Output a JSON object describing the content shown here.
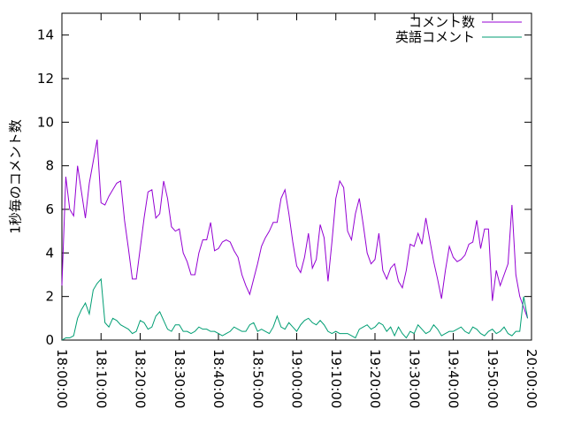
{
  "chart_data": {
    "type": "line",
    "ylabel": "1秒毎のコメント数",
    "legend": "top-right",
    "xlim": [
      "18:00:00",
      "20:00:00"
    ],
    "xticks": [
      "18:00:00",
      "18:10:00",
      "18:20:00",
      "18:30:00",
      "18:40:00",
      "18:50:00",
      "19:00:00",
      "19:10:00",
      "19:20:00",
      "19:30:00",
      "19:40:00",
      "19:50:00",
      "20:00:00"
    ],
    "ylim": [
      0,
      15
    ],
    "yticks": [
      0,
      2,
      4,
      6,
      8,
      10,
      12,
      14
    ],
    "x": [
      "18:00:00",
      "18:01:00",
      "18:02:00",
      "18:03:00",
      "18:04:00",
      "18:05:00",
      "18:06:00",
      "18:07:00",
      "18:08:00",
      "18:09:00",
      "18:10:00",
      "18:11:00",
      "18:12:00",
      "18:13:00",
      "18:14:00",
      "18:15:00",
      "18:16:00",
      "18:17:00",
      "18:18:00",
      "18:19:00",
      "18:20:00",
      "18:21:00",
      "18:22:00",
      "18:23:00",
      "18:24:00",
      "18:25:00",
      "18:26:00",
      "18:27:00",
      "18:28:00",
      "18:29:00",
      "18:30:00",
      "18:31:00",
      "18:32:00",
      "18:33:00",
      "18:34:00",
      "18:35:00",
      "18:36:00",
      "18:37:00",
      "18:38:00",
      "18:39:00",
      "18:40:00",
      "18:41:00",
      "18:42:00",
      "18:43:00",
      "18:44:00",
      "18:45:00",
      "18:46:00",
      "18:47:00",
      "18:48:00",
      "18:49:00",
      "18:50:00",
      "18:51:00",
      "18:52:00",
      "18:53:00",
      "18:54:00",
      "18:55:00",
      "18:56:00",
      "18:57:00",
      "18:58:00",
      "18:59:00",
      "19:00:00",
      "19:01:00",
      "19:02:00",
      "19:03:00",
      "19:04:00",
      "19:05:00",
      "19:06:00",
      "19:07:00",
      "19:08:00",
      "19:09:00",
      "19:10:00",
      "19:11:00",
      "19:12:00",
      "19:13:00",
      "19:14:00",
      "19:15:00",
      "19:16:00",
      "19:17:00",
      "19:18:00",
      "19:19:00",
      "19:20:00",
      "19:21:00",
      "19:22:00",
      "19:23:00",
      "19:24:00",
      "19:25:00",
      "19:26:00",
      "19:27:00",
      "19:28:00",
      "19:29:00",
      "19:30:00",
      "19:31:00",
      "19:32:00",
      "19:33:00",
      "19:34:00",
      "19:35:00",
      "19:36:00",
      "19:37:00",
      "19:38:00",
      "19:39:00",
      "19:40:00",
      "19:41:00",
      "19:42:00",
      "19:43:00",
      "19:44:00",
      "19:45:00",
      "19:46:00",
      "19:47:00",
      "19:48:00",
      "19:49:00",
      "19:50:00",
      "19:51:00",
      "19:52:00",
      "19:53:00",
      "19:54:00",
      "19:55:00",
      "19:56:00",
      "19:57:00",
      "19:58:00",
      "19:59:00"
    ],
    "series": [
      {
        "name": "コメント数",
        "color": "#9400d3",
        "values": [
          2.5,
          7.5,
          6.0,
          5.7,
          8.0,
          6.8,
          5.6,
          7.2,
          8.2,
          9.2,
          6.3,
          6.2,
          6.6,
          6.9,
          7.2,
          7.3,
          5.5,
          4.2,
          2.8,
          2.8,
          4.2,
          5.6,
          6.8,
          6.9,
          5.6,
          5.8,
          7.3,
          6.5,
          5.2,
          5.0,
          5.1,
          4.0,
          3.6,
          3.0,
          3.0,
          4.0,
          4.6,
          4.6,
          5.4,
          4.1,
          4.2,
          4.5,
          4.6,
          4.5,
          4.1,
          3.8,
          3.0,
          2.5,
          2.1,
          2.8,
          3.5,
          4.3,
          4.7,
          5.0,
          5.4,
          5.4,
          6.5,
          6.9,
          5.8,
          4.5,
          3.4,
          3.1,
          3.8,
          4.9,
          3.3,
          3.7,
          5.3,
          4.7,
          2.7,
          4.5,
          6.5,
          7.3,
          7.0,
          5.0,
          4.6,
          5.8,
          6.5,
          5.3,
          4.0,
          3.5,
          3.7,
          4.9,
          3.2,
          2.8,
          3.3,
          3.5,
          2.7,
          2.4,
          3.2,
          4.4,
          4.3,
          4.9,
          4.4,
          5.6,
          4.6,
          3.6,
          2.8,
          1.9,
          3.2,
          4.3,
          3.8,
          3.6,
          3.7,
          3.9,
          4.4,
          4.5,
          5.5,
          4.2,
          5.1,
          5.1,
          1.8,
          3.2,
          2.5,
          3.0,
          3.5,
          6.2,
          3.0,
          2.0,
          1.5,
          1.0
        ]
      },
      {
        "name": "英語コメント",
        "color": "#009e73",
        "values": [
          0,
          0.1,
          0.1,
          0.2,
          1.0,
          1.4,
          1.7,
          1.2,
          2.3,
          2.6,
          2.8,
          0.8,
          0.6,
          1.0,
          0.9,
          0.7,
          0.6,
          0.5,
          0.3,
          0.4,
          0.9,
          0.8,
          0.5,
          0.6,
          1.1,
          1.3,
          0.9,
          0.5,
          0.4,
          0.7,
          0.7,
          0.4,
          0.4,
          0.3,
          0.4,
          0.6,
          0.5,
          0.5,
          0.4,
          0.4,
          0.3,
          0.2,
          0.3,
          0.4,
          0.6,
          0.5,
          0.4,
          0.4,
          0.7,
          0.8,
          0.4,
          0.5,
          0.4,
          0.3,
          0.6,
          1.1,
          0.6,
          0.5,
          0.8,
          0.6,
          0.4,
          0.7,
          0.9,
          1.0,
          0.8,
          0.7,
          0.9,
          0.7,
          0.4,
          0.3,
          0.4,
          0.3,
          0.3,
          0.3,
          0.2,
          0.1,
          0.5,
          0.6,
          0.7,
          0.5,
          0.6,
          0.8,
          0.7,
          0.4,
          0.6,
          0.2,
          0.6,
          0.3,
          0.1,
          0.4,
          0.3,
          0.7,
          0.5,
          0.3,
          0.4,
          0.7,
          0.5,
          0.2,
          0.3,
          0.4,
          0.4,
          0.5,
          0.6,
          0.4,
          0.3,
          0.6,
          0.5,
          0.3,
          0.2,
          0.4,
          0.5,
          0.3,
          0.4,
          0.6,
          0.3,
          0.2,
          0.4,
          0.4,
          2.0,
          1.0
        ]
      }
    ]
  }
}
